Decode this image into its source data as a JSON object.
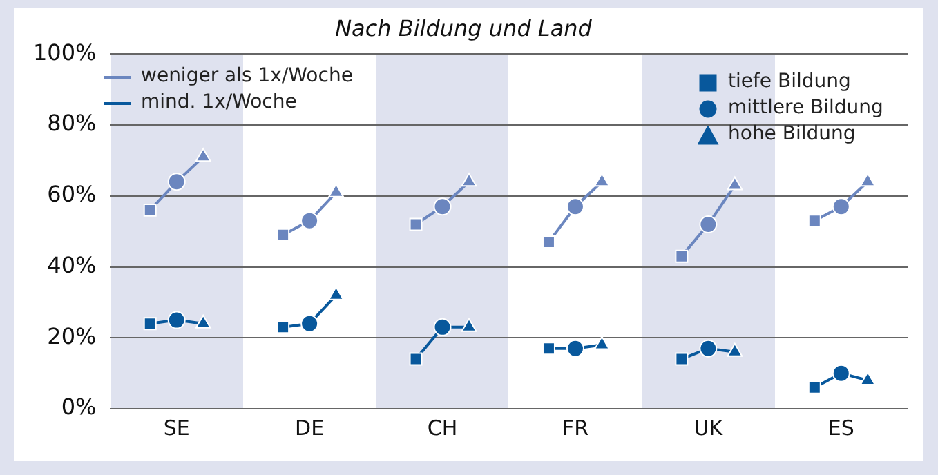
{
  "chart_data": {
    "type": "line",
    "title": "Nach Bildung und Land",
    "categories": [
      null,
      null,
      "SE",
      null,
      null,
      null,
      null,
      "DE",
      null,
      null,
      null,
      null,
      "CH",
      null,
      null,
      null,
      null,
      "FR",
      null,
      null,
      null,
      null,
      "UK",
      null,
      null,
      null,
      null,
      "ES",
      null,
      null
    ],
    "series": [
      {
        "name": "weniger als 1x/Woche",
        "marker": "none",
        "color": "#6b86bf",
        "values": [
          null,
          56,
          64,
          71,
          null,
          null,
          49,
          53,
          61,
          null,
          null,
          52,
          57,
          64,
          null,
          null,
          47,
          57,
          64,
          null,
          null,
          43,
          52,
          63,
          null,
          null,
          53,
          57,
          64,
          null
        ]
      },
      {
        "name": "mind. 1x/Woche",
        "marker": "none",
        "color": "#08589c",
        "values": [
          null,
          24,
          25,
          24,
          null,
          null,
          23,
          24,
          32,
          null,
          null,
          14,
          23,
          23,
          null,
          null,
          17,
          17,
          18,
          null,
          null,
          14,
          17,
          16,
          null,
          null,
          6,
          10,
          8,
          null
        ]
      },
      {
        "type": "scatter",
        "marker": "square",
        "color": "#6b86bf",
        "values": [
          null,
          56,
          null,
          null,
          null,
          null,
          49,
          null,
          null,
          null,
          null,
          52,
          null,
          null,
          null,
          null,
          47,
          null,
          null,
          null,
          null,
          43,
          null,
          null,
          null,
          null,
          53,
          null,
          null,
          null
        ]
      },
      {
        "type": "scatter",
        "marker": "circle",
        "color": "#6b86bf",
        "values": [
          null,
          null,
          64,
          null,
          null,
          null,
          null,
          53,
          null,
          null,
          null,
          null,
          57,
          null,
          null,
          null,
          null,
          57,
          null,
          null,
          null,
          null,
          52,
          null,
          null,
          null,
          null,
          57,
          null,
          null
        ]
      },
      {
        "type": "scatter",
        "marker": "triangle",
        "color": "#6b86bf",
        "values": [
          null,
          null,
          null,
          71,
          null,
          null,
          null,
          null,
          61,
          null,
          null,
          null,
          null,
          64,
          null,
          null,
          null,
          null,
          64,
          null,
          null,
          null,
          null,
          63,
          null,
          null,
          null,
          null,
          64,
          null
        ]
      },
      {
        "name": "tiefe Bildung",
        "type": "scatter",
        "marker": "square",
        "color": "#08589c",
        "values": [
          null,
          24,
          null,
          null,
          null,
          null,
          23,
          null,
          null,
          null,
          null,
          14,
          null,
          null,
          null,
          null,
          17,
          null,
          null,
          null,
          null,
          14,
          null,
          null,
          null,
          null,
          6,
          null,
          null,
          null
        ]
      },
      {
        "name": "mittlere Bildung",
        "type": "scatter",
        "marker": "circle",
        "color": "#08589c",
        "values": [
          null,
          null,
          25,
          null,
          null,
          null,
          null,
          24,
          null,
          null,
          null,
          null,
          23,
          null,
          null,
          null,
          null,
          17,
          null,
          null,
          null,
          null,
          17,
          null,
          null,
          null,
          null,
          10,
          null,
          null
        ]
      },
      {
        "name": "hohe Bildung",
        "type": "scatter",
        "marker": "triangle",
        "color": "#08589c",
        "values": [
          null,
          null,
          null,
          24,
          null,
          null,
          null,
          null,
          32,
          null,
          null,
          null,
          null,
          23,
          null,
          null,
          null,
          null,
          18,
          null,
          null,
          null,
          null,
          16,
          null,
          null,
          null,
          null,
          8,
          null
        ]
      }
    ],
    "ylim": [
      0,
      100
    ],
    "yticks": [
      {
        "value": 0,
        "label": "0%"
      },
      {
        "value": 20,
        "label": "20%"
      },
      {
        "value": 40,
        "label": "40%"
      },
      {
        "value": 60,
        "label": "60%"
      },
      {
        "value": 80,
        "label": "80%"
      },
      {
        "value": 100,
        "label": "100%"
      }
    ],
    "grid": "y",
    "legend": "top left"
  }
}
